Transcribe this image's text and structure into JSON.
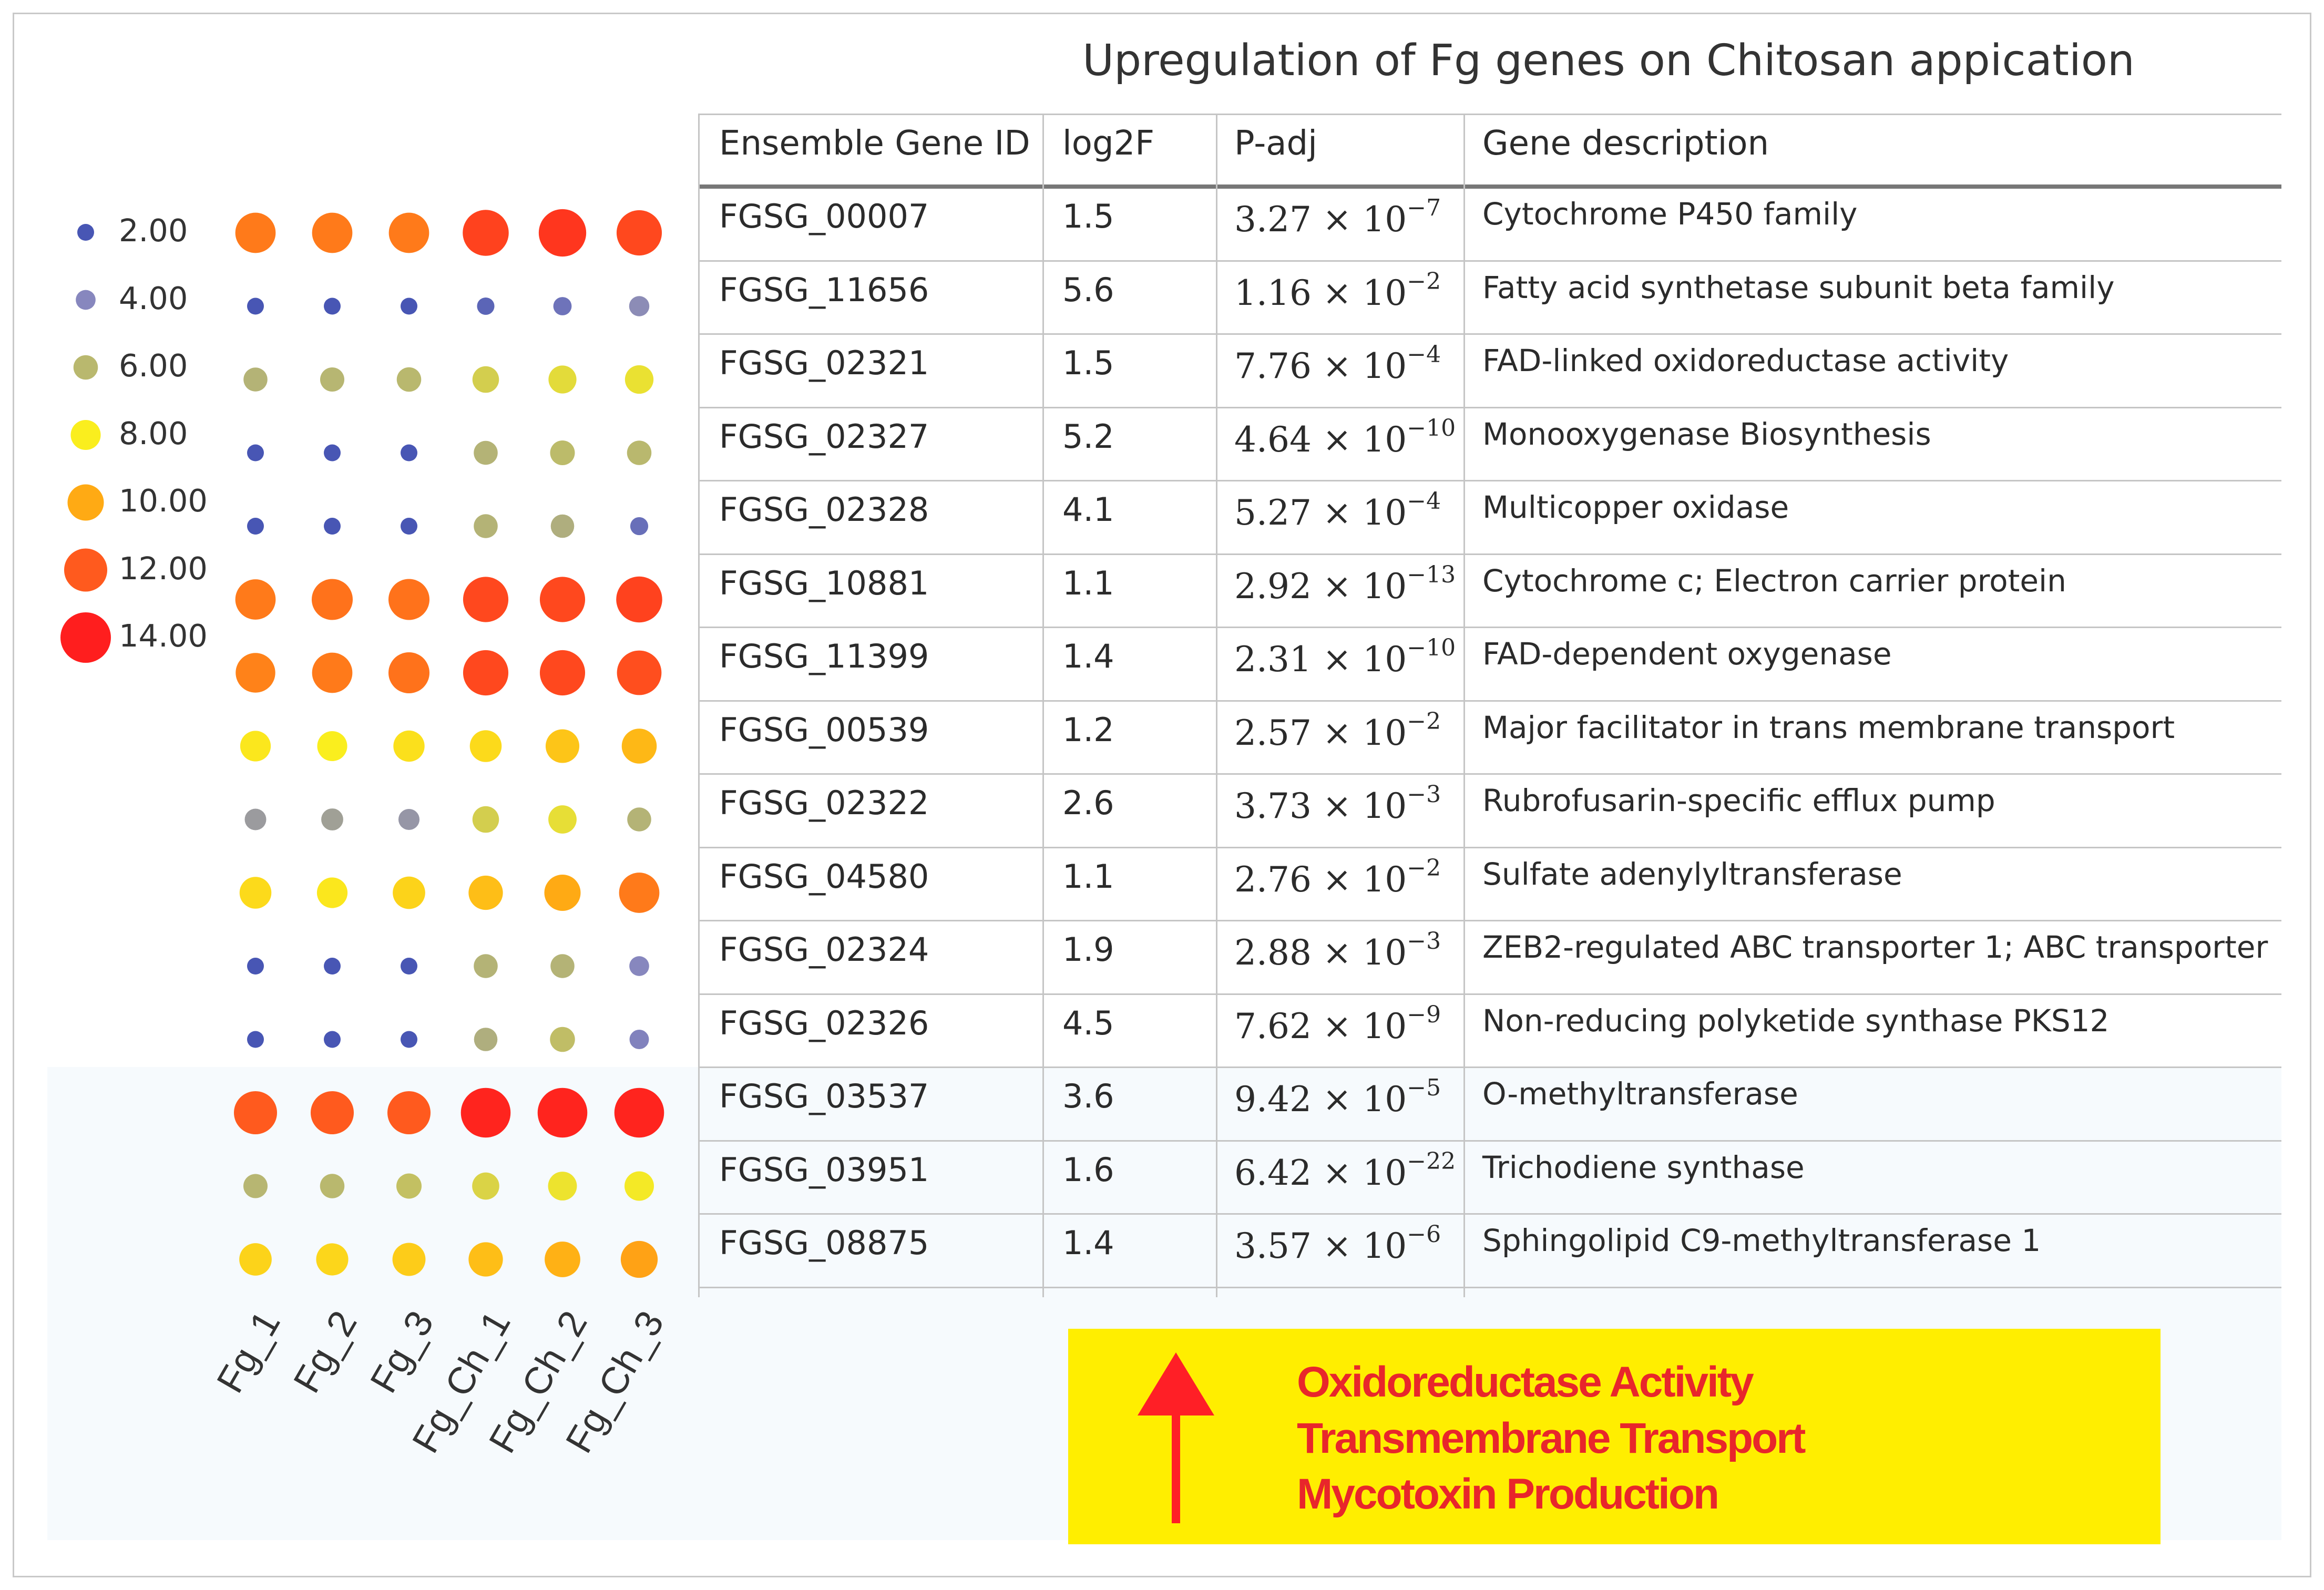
{
  "title": "Upregulation of Fg genes on Chitosan appication",
  "chart_data": {
    "type": "dot-heatmap",
    "samples": [
      "Fg_1",
      "Fg_2",
      "Fg_3",
      "Fg_Ch_1",
      "Fg_Ch_2",
      "Fg_Ch_3"
    ],
    "legend": [
      {
        "label": "2.00",
        "value": 2
      },
      {
        "label": "4.00",
        "value": 4
      },
      {
        "label": "6.00",
        "value": 6
      },
      {
        "label": "8.00",
        "value": 8
      },
      {
        "label": "10.00",
        "value": 10
      },
      {
        "label": "12.00",
        "value": 12
      },
      {
        "label": "14.00",
        "value": 14
      }
    ],
    "rows": [
      {
        "gene": "FGSG_00007",
        "values": [
          11.2,
          11.2,
          11.2,
          12.8,
          13.2,
          12.6
        ]
      },
      {
        "gene": "FGSG_11656",
        "values": [
          2.0,
          2.0,
          2.0,
          2.6,
          3.2,
          4.2
        ]
      },
      {
        "gene": "FGSG_02321",
        "values": [
          5.8,
          5.9,
          6.0,
          6.8,
          7.3,
          7.5
        ]
      },
      {
        "gene": "FGSG_02327",
        "values": [
          2.0,
          2.0,
          1.9,
          5.8,
          6.1,
          6.0
        ]
      },
      {
        "gene": "FGSG_02328",
        "values": [
          2.0,
          2.0,
          1.9,
          5.8,
          5.6,
          3.0
        ]
      },
      {
        "gene": "FGSG_10881",
        "values": [
          11.2,
          11.4,
          11.4,
          12.6,
          12.6,
          12.8
        ]
      },
      {
        "gene": "FGSG_11399",
        "values": [
          11.0,
          11.2,
          11.4,
          12.6,
          12.6,
          12.4
        ]
      },
      {
        "gene": "FGSG_00539",
        "values": [
          8.2,
          8.0,
          8.4,
          8.6,
          9.2,
          9.6
        ]
      },
      {
        "gene": "FGSG_02322",
        "values": [
          4.8,
          5.0,
          4.6,
          6.8,
          7.4,
          5.8
        ]
      },
      {
        "gene": "FGSG_04580",
        "values": [
          8.6,
          8.2,
          8.8,
          9.4,
          10.0,
          11.2
        ]
      },
      {
        "gene": "FGSG_02324",
        "values": [
          2.0,
          2.0,
          1.9,
          5.8,
          5.8,
          4.0
        ]
      },
      {
        "gene": "FGSG_02326",
        "values": [
          2.0,
          2.0,
          2.0,
          5.6,
          6.2,
          3.8
        ]
      },
      {
        "gene": "FGSG_03537",
        "values": [
          12.0,
          12.0,
          12.0,
          13.8,
          13.8,
          13.8
        ]
      },
      {
        "gene": "FGSG_03951",
        "values": [
          5.9,
          6.0,
          6.3,
          7.0,
          7.6,
          7.8
        ]
      },
      {
        "gene": "FGSG_08875",
        "values": [
          8.8,
          8.7,
          9.0,
          9.4,
          9.8,
          10.2
        ]
      }
    ]
  },
  "table": {
    "headers": [
      "Ensemble Gene ID",
      "log2F",
      "P-adj",
      "Gene description"
    ],
    "rows": [
      {
        "id": "FGSG_00007",
        "log2f": "1.5",
        "padj": "3.27 × 10",
        "padj_exp": "−7",
        "desc": "Cytochrome P450 family"
      },
      {
        "id": "FGSG_11656",
        "log2f": "5.6",
        "padj": "1.16 × 10",
        "padj_exp": "−2",
        "desc": "Fatty acid synthetase subunit beta family"
      },
      {
        "id": "FGSG_02321",
        "log2f": "1.5",
        "padj": "7.76 × 10",
        "padj_exp": "−4",
        "desc": "FAD-linked oxidoreductase activity"
      },
      {
        "id": "FGSG_02327",
        "log2f": "5.2",
        "padj": "4.64 × 10",
        "padj_exp": "−10",
        "desc": "Monooxygenase Biosynthesis"
      },
      {
        "id": "FGSG_02328",
        "log2f": "4.1",
        "padj": "5.27 × 10",
        "padj_exp": "−4",
        "desc": "Multicopper oxidase"
      },
      {
        "id": "FGSG_10881",
        "log2f": "1.1",
        "padj": "2.92 × 10",
        "padj_exp": "−13",
        "desc": "Cytochrome c; Electron carrier protein"
      },
      {
        "id": "FGSG_11399",
        "log2f": "1.4",
        "padj": "2.31 × 10",
        "padj_exp": "−10",
        "desc": "FAD-dependent oxygenase"
      },
      {
        "id": "FGSG_00539",
        "log2f": "1.2",
        "padj": "2.57 × 10",
        "padj_exp": "−2",
        "desc": "Major facilitator in trans membrane transport"
      },
      {
        "id": "FGSG_02322",
        "log2f": "2.6",
        "padj": "3.73 × 10",
        "padj_exp": "−3",
        "desc": "Rubrofusarin-specific efflux pump"
      },
      {
        "id": "FGSG_04580",
        "log2f": "1.1",
        "padj": "2.76 × 10",
        "padj_exp": "−2",
        "desc": "Sulfate adenylyltransferase"
      },
      {
        "id": "FGSG_02324",
        "log2f": "1.9",
        "padj": "2.88 × 10",
        "padj_exp": "−3",
        "desc": "ZEB2-regulated ABC transporter 1; ABC transporter"
      },
      {
        "id": "FGSG_02326",
        "log2f": "4.5",
        "padj": "7.62 × 10",
        "padj_exp": "−9",
        "desc": "Non-reducing polyketide synthase PKS12"
      },
      {
        "id": "FGSG_03537",
        "log2f": "3.6",
        "padj": "9.42 × 10",
        "padj_exp": "−5",
        "desc": "O-methyltransferase"
      },
      {
        "id": "FGSG_03951",
        "log2f": "1.6",
        "padj": "6.42 × 10",
        "padj_exp": "−22",
        "desc": "Trichodiene synthase"
      },
      {
        "id": "FGSG_08875",
        "log2f": "1.4",
        "padj": "3.57 × 10",
        "padj_exp": "−6",
        "desc": "Sphingolipid C9-methyltransferase 1"
      }
    ]
  },
  "summary": {
    "icon": "up-arrow-icon",
    "arrow_color": "#ff1f26",
    "background": "#ffee00",
    "text_color": "#e8262b",
    "lines": [
      "Oxidoreductase Activity",
      "Transmembrane Transport",
      "Mycotoxin Production"
    ]
  }
}
